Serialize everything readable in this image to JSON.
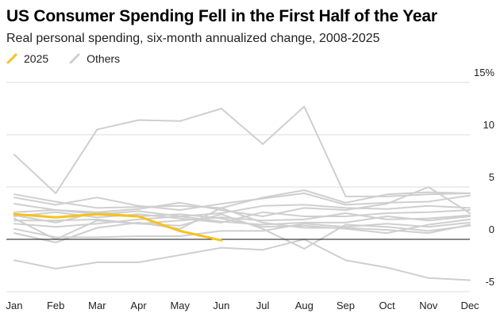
{
  "title": "US Consumer Spending Fell in the First Half of the Year",
  "subtitle": "Real personal spending, six-month annualized change, 2008-2025",
  "legend": [
    {
      "label": "2025",
      "color": "#f7c21b"
    },
    {
      "label": "Others",
      "color": "#cfcfcf"
    }
  ],
  "chart_data": {
    "type": "line",
    "title": "US Consumer Spending Fell in the First Half of the Year",
    "subtitle": "Real personal spending, six-month annualized change, 2008-2025",
    "xlabel": "",
    "ylabel": "",
    "ylim": [
      -5,
      15
    ],
    "yticks": [
      -5,
      0,
      5,
      10,
      15
    ],
    "ytick_labels": [
      "-5",
      "0",
      "5",
      "10",
      "15%"
    ],
    "grid": true,
    "legend_position": "top-left",
    "categories": [
      "Jan",
      "Feb",
      "Mar",
      "Apr",
      "May",
      "Jun",
      "Jul",
      "Aug",
      "Sep",
      "Oct",
      "Nov",
      "Dec"
    ],
    "highlight": {
      "name": "2025",
      "color": "#f7c21b",
      "values": [
        2.4,
        2.1,
        2.4,
        2.2,
        0.8,
        -0.1,
        null,
        null,
        null,
        null,
        null,
        null
      ]
    },
    "others_color": "#cfcfcf",
    "others": [
      {
        "name": "Others",
        "values": [
          8.1,
          4.4,
          10.5,
          11.4,
          11.3,
          12.5,
          9.1,
          12.7,
          4.1,
          4.1,
          4.3,
          4.4
        ]
      },
      {
        "name": "Others",
        "values": [
          -2.0,
          -2.8,
          -2.2,
          -2.2,
          -1.5,
          -0.8,
          -1.0,
          0.0,
          -2.0,
          -2.7,
          -3.7,
          -3.9
        ]
      },
      {
        "name": "Others",
        "values": [
          4.3,
          3.6,
          3.0,
          3.1,
          3.2,
          3.0,
          4.0,
          4.7,
          3.5,
          4.3,
          4.5,
          4.4
        ]
      },
      {
        "name": "Others",
        "values": [
          4.0,
          3.3,
          4.0,
          3.2,
          2.8,
          3.4,
          3.9,
          4.4,
          3.3,
          3.5,
          3.6,
          4.2
        ]
      },
      {
        "name": "Others",
        "values": [
          3.4,
          2.8,
          2.6,
          2.9,
          3.5,
          2.8,
          2.2,
          3.0,
          2.8,
          3.4,
          5.0,
          2.5
        ]
      },
      {
        "name": "Others",
        "values": [
          2.6,
          2.8,
          2.4,
          2.7,
          2.2,
          2.5,
          3.2,
          3.3,
          3.0,
          2.9,
          3.2,
          3.0
        ]
      },
      {
        "name": "Others",
        "values": [
          2.2,
          2.6,
          2.1,
          2.4,
          2.0,
          1.6,
          2.6,
          2.2,
          2.2,
          2.5,
          2.6,
          2.8
        ]
      },
      {
        "name": "Others",
        "values": [
          1.8,
          1.8,
          1.9,
          1.5,
          1.8,
          2.1,
          1.8,
          1.9,
          2.5,
          1.9,
          2.0,
          2.3
        ]
      },
      {
        "name": "Others",
        "values": [
          1.5,
          1.2,
          1.5,
          1.9,
          2.2,
          1.7,
          1.4,
          1.6,
          1.6,
          2.2,
          1.8,
          2.2
        ]
      },
      {
        "name": "Others",
        "values": [
          1.0,
          0.2,
          0.2,
          0.3,
          0.3,
          0.8,
          0.8,
          1.5,
          1.2,
          1.5,
          1.2,
          1.6
        ]
      },
      {
        "name": "Others",
        "values": [
          0.6,
          -0.3,
          1.1,
          1.6,
          1.0,
          3.0,
          1.6,
          1.1,
          1.1,
          0.9,
          0.6,
          1.4
        ]
      },
      {
        "name": "Others",
        "values": [
          2.3,
          1.6,
          2.6,
          2.2,
          2.4,
          2.0,
          1.2,
          1.3,
          1.0,
          0.6,
          1.4,
          1.9
        ]
      },
      {
        "name": "Others",
        "values": [
          2.0,
          0.0,
          1.8,
          1.5,
          1.3,
          2.4,
          1.0,
          -0.9,
          1.4,
          1.2,
          0.8,
          1.3
        ]
      }
    ]
  }
}
